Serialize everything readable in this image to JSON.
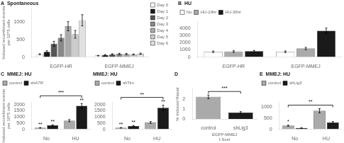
{
  "chart_data": [
    {
      "type": "bar",
      "title": "A  Spontaneous",
      "categories": [
        "EGFP-HR",
        "EGFP-MMEJ"
      ],
      "series": [
        {
          "name": "Day 0",
          "color": "#ffffff",
          "values": [
            80,
            40
          ],
          "errors": [
            15,
            8
          ]
        },
        {
          "name": "Day 1",
          "color": "#1a1a1a",
          "values": [
            150,
            60
          ],
          "errors": [
            30,
            12
          ]
        },
        {
          "name": "Day 2",
          "color": "#555555",
          "values": [
            380,
            80
          ],
          "errors": [
            70,
            15
          ]
        },
        {
          "name": "Day 3",
          "color": "#888888",
          "values": [
            550,
            90
          ],
          "errors": [
            90,
            18
          ]
        },
        {
          "name": "Day 4",
          "color": "#aaaaaa",
          "values": [
            880,
            85
          ],
          "errors": [
            130,
            16
          ]
        },
        {
          "name": "Day 5",
          "color": "#cccccc",
          "values": [
            650,
            75
          ],
          "errors": [
            110,
            14
          ]
        },
        {
          "name": "Day 6",
          "color": "#e0e0e0",
          "values": [
            1050,
            95
          ],
          "errors": [
            160,
            18
          ]
        }
      ],
      "ylabel": "Induced recombinant events\nper 10^5 cells",
      "ylim": [
        0,
        1400
      ],
      "yticks": [
        0,
        500,
        1000
      ],
      "grid": false,
      "legend": "upper right"
    },
    {
      "type": "bar",
      "title": "B  HU",
      "categories": [
        "EGFP-HR",
        "EGFP-MMEJ"
      ],
      "series": [
        {
          "name": "No",
          "color": "#ffffff",
          "values": [
            750,
            750
          ],
          "errors": [
            100,
            110
          ]
        },
        {
          "name": "HU-24hr",
          "color": "#aaaaaa",
          "values": [
            780,
            1200
          ],
          "errors": [
            110,
            160
          ]
        },
        {
          "name": "HU-36hr",
          "color": "#1a1a1a",
          "values": [
            820,
            3700
          ],
          "errors": [
            120,
            380
          ]
        }
      ],
      "ylim": [
        0,
        5000
      ],
      "yticks": [
        0,
        1000,
        2000,
        3000,
        4000
      ],
      "grid": false,
      "legend": "upper left"
    },
    {
      "type": "bar",
      "title": "C  MMEJ: HU",
      "categories": [
        "No",
        "HU"
      ],
      "series": [
        {
          "name": "control",
          "color": "#aaaaaa",
          "values": [
            120,
            700
          ],
          "errors": [
            20,
            90
          ]
        },
        {
          "name": "shA7R",
          "color": "#1a1a1a",
          "values": [
            320,
            1900
          ],
          "errors": [
            45,
            190
          ]
        }
      ],
      "ylabel": "Induced recombinant events\nper 10^5 cells",
      "ylim": [
        0,
        2200
      ],
      "yticks": [
        0,
        500,
        1000,
        1500,
        2000
      ],
      "grid": false,
      "legend": "upper left",
      "annotations": [
        "**",
        "**",
        "**",
        "***"
      ]
    },
    {
      "type": "bar",
      "title": "MMEJ: HU",
      "categories": [
        "No",
        "HU"
      ],
      "series": [
        {
          "name": "control",
          "color": "#aaaaaa",
          "values": [
            120,
            560
          ],
          "errors": [
            18,
            75
          ]
        },
        {
          "name": "shTim",
          "color": "#1a1a1a",
          "values": [
            270,
            1750
          ],
          "errors": [
            38,
            210
          ]
        }
      ],
      "ylim": [
        0,
        2200
      ],
      "yticks": [
        0,
        500,
        1000,
        1500,
        2000
      ],
      "grid": false,
      "legend": "upper left",
      "annotations": [
        "**",
        "**",
        "**",
        "**"
      ]
    },
    {
      "type": "bar",
      "title": "D",
      "categories": [
        "control",
        "shLig3"
      ],
      "values": [
        2.2,
        0.65
      ],
      "errors": [
        0.18,
        0.09
      ],
      "colors": [
        "#aaaaaa",
        "#1a1a1a"
      ],
      "xlabel": "EGFP-MMEJ\nI-SceI",
      "ylabel": "% Induced Repair",
      "ylim": [
        0,
        3.0
      ],
      "yticks": [
        0,
        1,
        2
      ],
      "grid": false,
      "annotations": [
        "***"
      ]
    },
    {
      "type": "bar",
      "title": "E  MMEJ: HU",
      "categories": [
        "No",
        "HU"
      ],
      "series": [
        {
          "name": "control",
          "color": "#aaaaaa",
          "values": [
            160,
            820
          ],
          "errors": [
            22,
            95
          ]
        },
        {
          "name": "shLig3",
          "color": "#1a1a1a",
          "values": [
            55,
            300
          ],
          "errors": [
            9,
            45
          ]
        }
      ],
      "ylim": [
        0,
        1200
      ],
      "yticks": [
        0,
        500,
        1000
      ],
      "grid": false,
      "legend": "upper left",
      "annotations": [
        "*",
        "**"
      ]
    }
  ]
}
